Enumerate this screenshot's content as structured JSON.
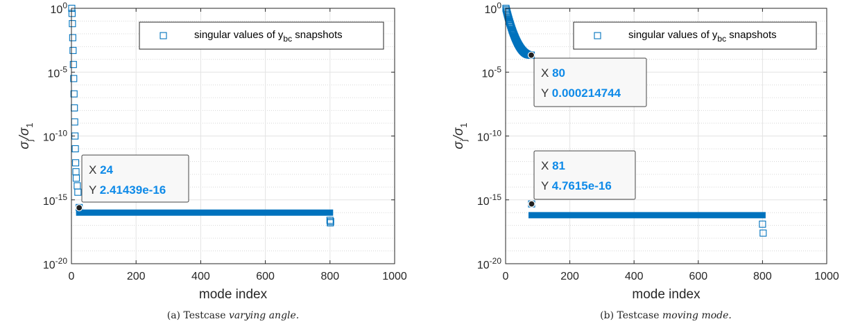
{
  "chart_data": [
    {
      "type": "scatter",
      "subplot": "a",
      "caption_prefix": "(a) Testcase ",
      "caption_italic": "varying angle.",
      "xlabel": "mode index",
      "ylabel": "σj/σ1",
      "xlim": [
        0,
        1000
      ],
      "ylim_exp": [
        -20,
        0
      ],
      "yscale": "log",
      "grid": true,
      "xticks": [
        "0",
        "200",
        "400",
        "600",
        "800",
        "1000"
      ],
      "legend": {
        "label": "singular values of y",
        "sub": "bc",
        "suffix": " snapshots",
        "placement": "top-right"
      },
      "series": [
        {
          "marker": "square",
          "color": "#0072BD",
          "decay_points": [
            [
              1,
              0
            ],
            [
              2,
              -0.4
            ],
            [
              3,
              -1.2
            ],
            [
              4,
              -2.3
            ],
            [
              5,
              -3.3
            ],
            [
              6,
              -4.4
            ],
            [
              7,
              -5.5
            ],
            [
              8,
              -6.7
            ],
            [
              9,
              -7.8
            ],
            [
              10,
              -8.9
            ],
            [
              11,
              -10.0
            ],
            [
              12,
              -11.0
            ],
            [
              13,
              -12.1
            ],
            [
              14,
              -12.8
            ],
            [
              15,
              -13.3
            ],
            [
              18,
              -13.9
            ],
            [
              20,
              -14.4
            ],
            [
              24,
              -15.6
            ]
          ],
          "floor": {
            "x_from": 24,
            "x_to": 800,
            "log10_y": -16.0
          },
          "tail_points": [
            [
              800,
              -16.6
            ],
            [
              801,
              -16.8
            ],
            [
              802,
              -16.7
            ]
          ]
        }
      ],
      "datatips": [
        {
          "x_label": "X",
          "x_value": "24",
          "y_label": "Y",
          "y_value": "2.41439e-16",
          "at": [
            24,
            -15.62
          ]
        }
      ]
    },
    {
      "type": "scatter",
      "subplot": "b",
      "caption_prefix": "(b) Testcase ",
      "caption_italic": "moving mode.",
      "xlabel": "mode index",
      "ylabel": "σj/σ1",
      "xlim": [
        0,
        1000
      ],
      "ylim_exp": [
        -20,
        0
      ],
      "yscale": "log",
      "grid": true,
      "xticks": [
        "0",
        "200",
        "400",
        "600",
        "800",
        "1000"
      ],
      "legend": {
        "label": "singular values of y",
        "sub": "bc",
        "suffix": " snapshots",
        "placement": "top-right"
      },
      "series": [
        {
          "marker": "square",
          "color": "#0072BD",
          "decay_curve": {
            "x_from": 1,
            "x_to": 80,
            "log10_y_start": 0,
            "log10_y_end": -3.668
          },
          "floor": {
            "x_from": 81,
            "x_to": 800,
            "log10_y": -16.2
          },
          "tail_points": [
            [
              81,
              -15.32
            ],
            [
              800,
              -16.9
            ],
            [
              802,
              -17.6
            ]
          ]
        }
      ],
      "datatips": [
        {
          "x_label": "X",
          "x_value": "80",
          "y_label": "Y",
          "y_value": "0.000214744",
          "at": [
            80,
            -3.668
          ]
        },
        {
          "x_label": "X",
          "x_value": "81",
          "y_label": "Y",
          "y_value": "4.7615e-16",
          "at": [
            81,
            -15.32
          ]
        }
      ]
    }
  ]
}
